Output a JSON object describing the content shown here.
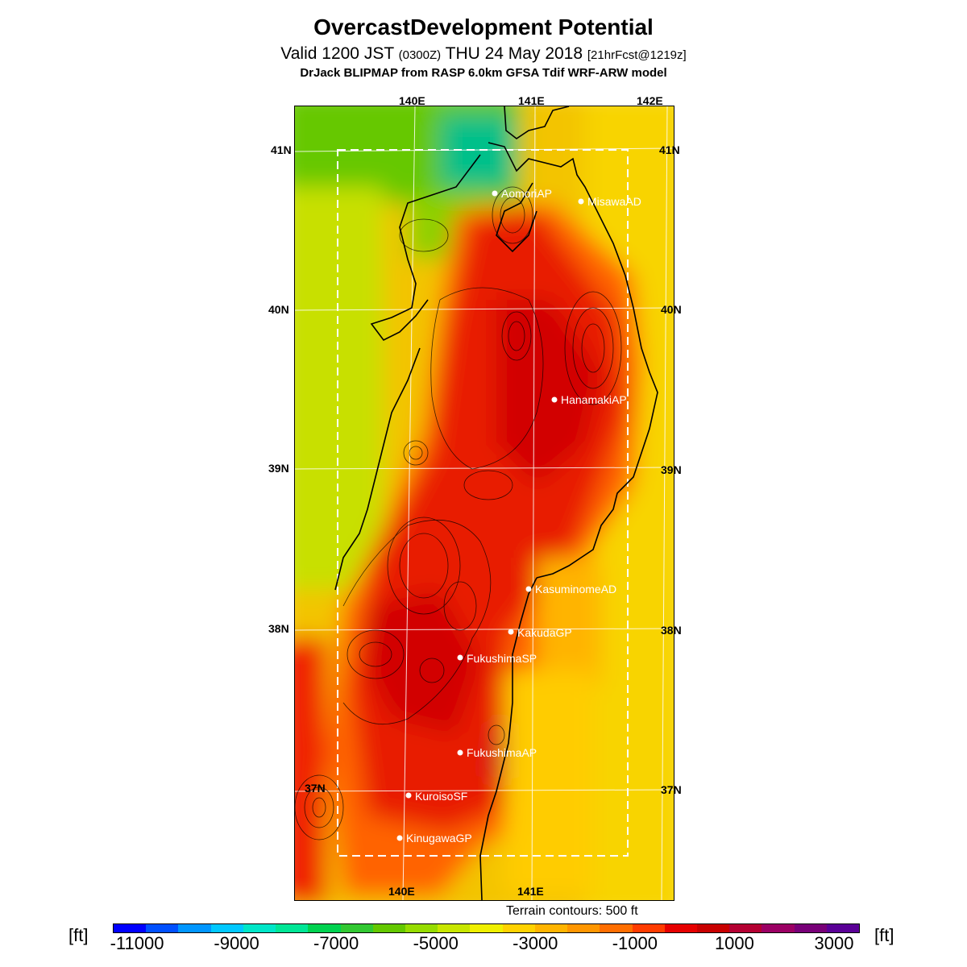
{
  "title": "OvercastDevelopment Potential",
  "subtitle_main": "Valid 1200 JST",
  "subtitle_zone": "(0300Z)",
  "subtitle_date": "THU 24 May 2018",
  "subtitle_fcst": "[21hrFcst@1219z]",
  "credit": "DrJack BLIPMAP from RASP 6.0km GFSA Tdif WRF-ARW model",
  "axes": {
    "top_lon": [
      "140E",
      "141E",
      "142E"
    ],
    "bottom_lon": [
      "140E",
      "141E"
    ],
    "left_lat": [
      "41N",
      "40N",
      "39N",
      "38N",
      "37N"
    ],
    "right_lat": [
      "41N",
      "40N",
      "39N",
      "38N",
      "37N"
    ]
  },
  "stations": [
    {
      "name": "AomoriAP"
    },
    {
      "name": "MisawaAD"
    },
    {
      "name": "HanamakiAP"
    },
    {
      "name": "KasuminomeAD"
    },
    {
      "name": "KakudaGP"
    },
    {
      "name": "FukushimaSP"
    },
    {
      "name": "FukushimaAP"
    },
    {
      "name": "KuroisoSF"
    },
    {
      "name": "KinugawaGP"
    }
  ],
  "terrain_note": "Terrain contours: 500 ft",
  "colorbar": {
    "unit": "[ft]",
    "tick_labels": [
      "-11000",
      "-9000",
      "-7000",
      "-5000",
      "-3000",
      "-1000",
      "1000",
      "3000"
    ],
    "colors": [
      "#0000ff",
      "#0050ff",
      "#0096ff",
      "#00c8ff",
      "#00e6c8",
      "#00e696",
      "#00d250",
      "#32c832",
      "#64c800",
      "#96dc00",
      "#c8e600",
      "#f0f000",
      "#ffd200",
      "#ffb400",
      "#ff9600",
      "#ff6e00",
      "#ff3c00",
      "#e60000",
      "#c80000",
      "#b40032",
      "#9b0064",
      "#780078",
      "#5a0096"
    ]
  }
}
